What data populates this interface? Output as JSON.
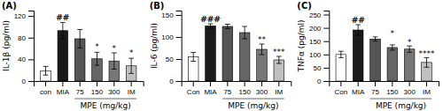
{
  "chart_data": [
    {
      "type": "bar",
      "title": "(A)",
      "ylabel": "IL-1β (pg/ml)",
      "xlabel": "MPE (mg/kg)",
      "categories": [
        "con",
        "MIA",
        "75",
        "150",
        "300",
        "IM"
      ],
      "values": [
        19,
        93,
        78,
        41,
        37,
        28
      ],
      "errors": [
        8,
        15,
        17,
        12,
        15,
        14
      ],
      "colors": [
        "#ffffff",
        "#1a1a1a",
        "#555555",
        "#666666",
        "#777777",
        "#c0c0c0"
      ],
      "ylim": [
        0,
        130
      ],
      "yticks": [
        0,
        40,
        80,
        120
      ],
      "annotations": [
        {
          "text": "##",
          "x": "MIA",
          "y": 112
        },
        {
          "text": "*",
          "x": "150",
          "y": 58
        },
        {
          "text": "*",
          "x": "300",
          "y": 55
        },
        {
          "text": "*",
          "x": "IM",
          "y": 47
        }
      ]
    },
    {
      "type": "bar",
      "title": "(B)",
      "ylabel": "IL-6 (pg/ml)",
      "xlabel": "MPE (mg/kg)",
      "categories": [
        "Con",
        "MIA",
        "75",
        "150",
        "300",
        "IM"
      ],
      "values": [
        55,
        125,
        124,
        110,
        72,
        48
      ],
      "errors": [
        10,
        5,
        5,
        14,
        12,
        8
      ],
      "colors": [
        "#ffffff",
        "#1a1a1a",
        "#555555",
        "#666666",
        "#777777",
        "#c0c0c0"
      ],
      "ylim": [
        0,
        160
      ],
      "yticks": [
        0,
        50,
        100,
        150
      ],
      "annotations": [
        {
          "text": "###",
          "x": "MIA",
          "y": 135
        },
        {
          "text": "**",
          "x": "300",
          "y": 88
        },
        {
          "text": "***",
          "x": "IM",
          "y": 60
        }
      ]
    },
    {
      "type": "bar",
      "title": "(C)",
      "ylabel": "TNFα (pg/ml)",
      "xlabel": "MPE (mg/kg)",
      "categories": [
        "Con",
        "MIA",
        "75",
        "150",
        "300",
        "IM"
      ],
      "values": [
        100,
        192,
        158,
        126,
        120,
        70
      ],
      "errors": [
        12,
        20,
        8,
        10,
        12,
        18
      ],
      "colors": [
        "#ffffff",
        "#1a1a1a",
        "#555555",
        "#666666",
        "#777777",
        "#c0c0c0"
      ],
      "ylim": [
        0,
        265
      ],
      "yticks": [
        0,
        50,
        100,
        150,
        200,
        250
      ],
      "annotations": [
        {
          "text": "##",
          "x": "MIA",
          "y": 218
        },
        {
          "text": "*",
          "x": "150",
          "y": 170
        },
        {
          "text": "*",
          "x": "300",
          "y": 136
        },
        {
          "text": "****",
          "x": "IM",
          "y": 92
        }
      ]
    }
  ]
}
